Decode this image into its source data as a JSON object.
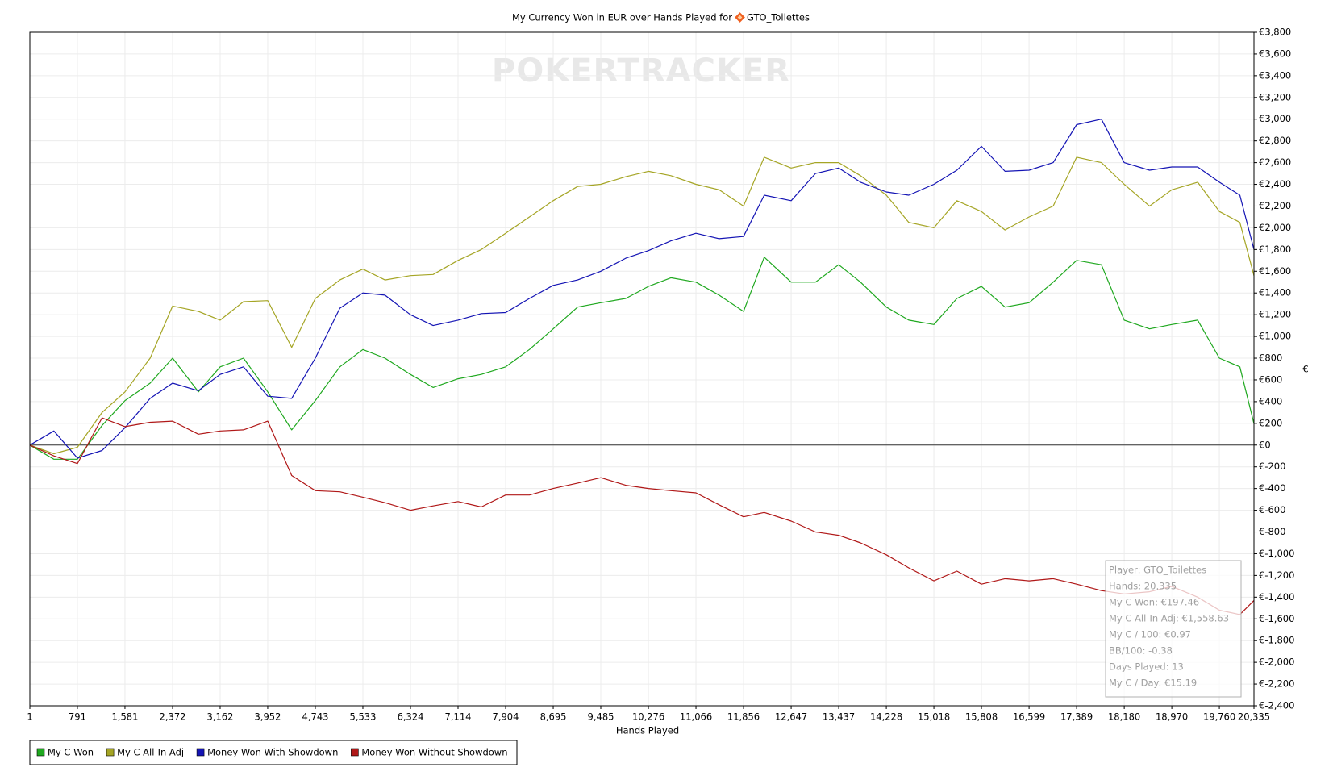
{
  "chart_data": {
    "type": "line",
    "title": "My Currency Won in EUR over Hands Played for",
    "title_player": "GTO_Toilettes",
    "watermark": "POKERTRACKER",
    "x_label": "Hands Played",
    "y_label": "€",
    "grid": true,
    "legend": "bottom-left",
    "x": [
      1,
      400,
      791,
      1200,
      1581,
      2000,
      2372,
      2800,
      3162,
      3550,
      3952,
      4350,
      4743,
      5150,
      5533,
      5900,
      6324,
      6700,
      7114,
      7500,
      7904,
      8300,
      8695,
      9100,
      9485,
      9900,
      10276,
      10650,
      11066,
      11450,
      11856,
      12200,
      12647,
      13050,
      13437,
      13800,
      14228,
      14600,
      15018,
      15400,
      15808,
      16200,
      16599,
      17000,
      17389,
      17800,
      18180,
      18600,
      18970,
      19400,
      19760,
      20100,
      20335
    ],
    "series": [
      {
        "name": "My C Won",
        "color": "#1fa81f",
        "values": [
          0,
          -130,
          -130,
          180,
          410,
          570,
          800,
          490,
          720,
          800,
          490,
          140,
          410,
          720,
          880,
          800,
          650,
          530,
          610,
          650,
          720,
          880,
          1070,
          1270,
          1310,
          1350,
          1460,
          1540,
          1500,
          1380,
          1230,
          1730,
          1500,
          1500,
          1660,
          1500,
          1270,
          1150,
          1110,
          1350,
          1460,
          1270,
          1310,
          1500,
          1700,
          1660,
          1150,
          1070,
          1110,
          1150,
          800,
          720,
          197
        ]
      },
      {
        "name": "My C All-In Adj",
        "color": "#a5a525",
        "values": [
          0,
          -80,
          -20,
          300,
          490,
          800,
          1280,
          1230,
          1150,
          1320,
          1330,
          900,
          1350,
          1520,
          1620,
          1520,
          1560,
          1570,
          1700,
          1800,
          1950,
          2100,
          2250,
          2380,
          2400,
          2470,
          2520,
          2480,
          2400,
          2350,
          2200,
          2650,
          2550,
          2600,
          2600,
          2480,
          2300,
          2050,
          2000,
          2250,
          2150,
          1980,
          2100,
          2200,
          2650,
          2600,
          2400,
          2200,
          2350,
          2420,
          2150,
          2050,
          1559
        ]
      },
      {
        "name": "Money Won With Showdown",
        "color": "#1414b4",
        "values": [
          0,
          130,
          -120,
          -50,
          160,
          430,
          570,
          500,
          650,
          720,
          450,
          430,
          800,
          1260,
          1400,
          1380,
          1200,
          1100,
          1150,
          1210,
          1220,
          1350,
          1470,
          1520,
          1600,
          1720,
          1790,
          1880,
          1950,
          1900,
          1920,
          2300,
          2250,
          2500,
          2550,
          2420,
          2330,
          2300,
          2400,
          2530,
          2750,
          2520,
          2530,
          2600,
          2950,
          3000,
          2600,
          2530,
          2560,
          2560,
          2420,
          2300,
          1800
        ]
      },
      {
        "name": "Money Won Without Showdown",
        "color": "#b01818",
        "values": [
          0,
          -100,
          -170,
          250,
          170,
          210,
          220,
          100,
          130,
          140,
          220,
          -280,
          -420,
          -430,
          -480,
          -530,
          -600,
          -560,
          -520,
          -570,
          -460,
          -460,
          -400,
          -350,
          -300,
          -370,
          -400,
          -420,
          -440,
          -550,
          -660,
          -620,
          -700,
          -800,
          -830,
          -900,
          -1010,
          -1130,
          -1250,
          -1160,
          -1280,
          -1230,
          -1250,
          -1230,
          -1280,
          -1340,
          -1370,
          -1350,
          -1300,
          -1400,
          -1520,
          -1560,
          -1430
        ]
      }
    ],
    "xlim": [
      1,
      20335
    ],
    "xticks": [
      1,
      {
        "value": 791,
        "label": "791"
      },
      {
        "value": 1581,
        "label": "1,581"
      },
      {
        "value": 2372,
        "label": "2,372"
      },
      {
        "value": 3162,
        "label": "3,162"
      },
      {
        "value": 3952,
        "label": "3,952"
      },
      {
        "value": 4743,
        "label": "4,743"
      },
      {
        "value": 5533,
        "label": "5,533"
      },
      {
        "value": 6324,
        "label": "6,324"
      },
      {
        "value": 7114,
        "label": "7,114"
      },
      {
        "value": 7904,
        "label": "7,904"
      },
      {
        "value": 8695,
        "label": "8,695"
      },
      {
        "value": 9485,
        "label": "9,485"
      },
      {
        "value": 10276,
        "label": "10,276"
      },
      {
        "value": 11066,
        "label": "11,066"
      },
      {
        "value": 11856,
        "label": "11,856"
      },
      {
        "value": 12647,
        "label": "12,647"
      },
      {
        "value": 13437,
        "label": "13,437"
      },
      {
        "value": 14228,
        "label": "14,228"
      },
      {
        "value": 15018,
        "label": "15,018"
      },
      {
        "value": 15808,
        "label": "15,808"
      },
      {
        "value": 16599,
        "label": "16,599"
      },
      {
        "value": 17389,
        "label": "17,389"
      },
      {
        "value": 18180,
        "label": "18,180"
      },
      {
        "value": 18970,
        "label": "18,970"
      },
      {
        "value": 19760,
        "label": "19,760"
      },
      {
        "value": 20335,
        "label": "20,335"
      }
    ],
    "ylim": [
      -2400,
      3800
    ],
    "yticks": [
      {
        "value": -2400,
        "label": "€-2,400"
      },
      {
        "value": -2200,
        "label": "€-2,200"
      },
      {
        "value": -2000,
        "label": "€-2,000"
      },
      {
        "value": -1800,
        "label": "€-1,800"
      },
      {
        "value": -1600,
        "label": "€-1,600"
      },
      {
        "value": -1400,
        "label": "€-1,400"
      },
      {
        "value": -1200,
        "label": "€-1,200"
      },
      {
        "value": -1000,
        "label": "€-1,000"
      },
      {
        "value": -800,
        "label": "€-800"
      },
      {
        "value": -600,
        "label": "€-600"
      },
      {
        "value": -400,
        "label": "€-400"
      },
      {
        "value": -200,
        "label": "€-200"
      },
      {
        "value": 0,
        "label": "€0"
      },
      {
        "value": 200,
        "label": "€200"
      },
      {
        "value": 400,
        "label": "€400"
      },
      {
        "value": 600,
        "label": "€600"
      },
      {
        "value": 800,
        "label": "€800"
      },
      {
        "value": 1000,
        "label": "€1,000"
      },
      {
        "value": 1200,
        "label": "€1,200"
      },
      {
        "value": 1400,
        "label": "€1,400"
      },
      {
        "value": 1600,
        "label": "€1,600"
      },
      {
        "value": 1800,
        "label": "€1,800"
      },
      {
        "value": 2000,
        "label": "€2,000"
      },
      {
        "value": 2200,
        "label": "€2,200"
      },
      {
        "value": 2400,
        "label": "€2,400"
      },
      {
        "value": 2600,
        "label": "€2,600"
      },
      {
        "value": 2800,
        "label": "€2,800"
      },
      {
        "value": 3000,
        "label": "€3,000"
      },
      {
        "value": 3200,
        "label": "€3,200"
      },
      {
        "value": 3400,
        "label": "€3,400"
      },
      {
        "value": 3600,
        "label": "€3,600"
      },
      {
        "value": 3800,
        "label": "€3,800"
      }
    ],
    "tooltip": [
      "Player: GTO_Toilettes",
      "Hands: 20,335",
      "My C Won: €197.46",
      "My C All-In Adj: €1,558.63",
      "My C / 100: €0.97",
      "BB/100: -0.38",
      "Days Played: 13",
      "My C / Day: €15.19"
    ]
  }
}
